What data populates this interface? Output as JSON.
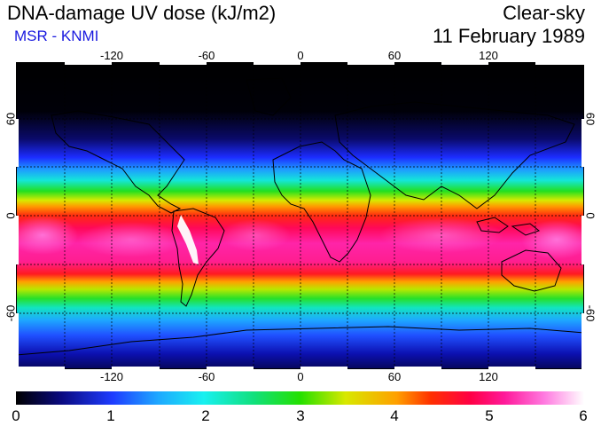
{
  "header": {
    "title": "DNA-damage UV dose (kJ/m2)",
    "source": "MSR - KNMI",
    "condition": "Clear-sky",
    "date": "11 February 1989"
  },
  "map": {
    "lon_ticks": [
      "-120",
      "-60",
      "0",
      "60",
      "120"
    ],
    "lat_ticks_left": [
      "60",
      "0",
      "-60"
    ],
    "lat_ticks_right": [
      "60",
      "0",
      "-60"
    ],
    "colors": {
      "ocean_low": "#000000",
      "peak": "#ff1a9a",
      "max": "#ffffff"
    }
  },
  "colorbar": {
    "labels": [
      "0",
      "1",
      "2",
      "3",
      "4",
      "5",
      "6"
    ],
    "range": [
      0,
      6
    ]
  }
}
